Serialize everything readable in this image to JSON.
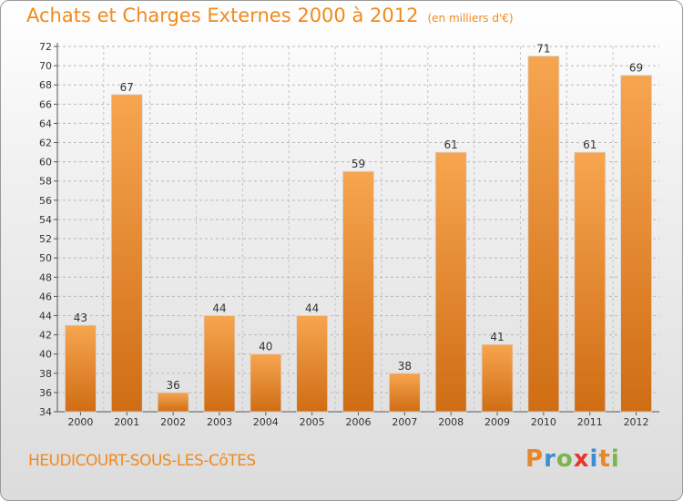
{
  "title": {
    "main": "Achats et Charges Externes 2000 à 2012",
    "sub": "(en milliers d'€)"
  },
  "place": "HEUDICOURT-SOUS-LES-CôTES",
  "brand": {
    "letters": [
      "P",
      "r",
      "o",
      "x",
      "i",
      "t",
      "i"
    ],
    "colors": [
      "#e8862a",
      "#3b8fd1",
      "#7ab648",
      "#e8342a",
      "#3b8fd1",
      "#e8862a",
      "#7ab648"
    ]
  },
  "colors": {
    "accent": "#f08a1e",
    "bar_top": "#f7a550",
    "bar_bottom": "#cf6d14"
  },
  "chart_data": {
    "type": "bar",
    "categories": [
      "2000",
      "2001",
      "2002",
      "2003",
      "2004",
      "2005",
      "2006",
      "2007",
      "2008",
      "2009",
      "2010",
      "2011",
      "2012"
    ],
    "values": [
      43,
      67,
      36,
      44,
      40,
      44,
      59,
      38,
      61,
      41,
      71,
      61,
      69
    ],
    "title": "Achats et Charges Externes 2000 à 2012",
    "ylim": [
      34,
      72
    ],
    "yticks": [
      34,
      36,
      38,
      40,
      42,
      44,
      46,
      48,
      50,
      52,
      54,
      56,
      58,
      60,
      62,
      64,
      66,
      68,
      70,
      72
    ],
    "grid": true,
    "data_labels": true
  }
}
